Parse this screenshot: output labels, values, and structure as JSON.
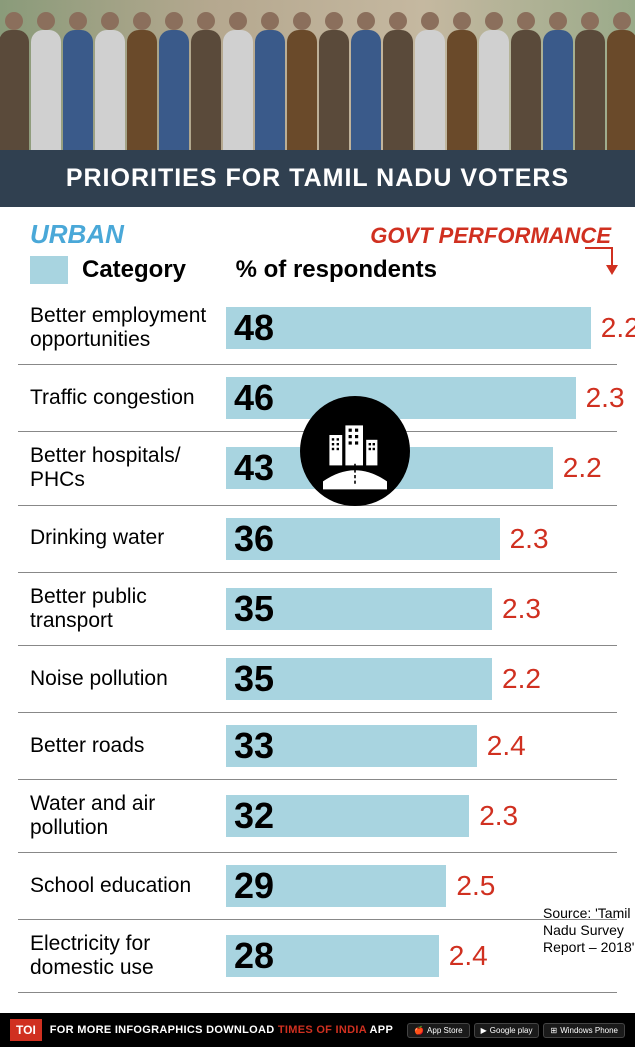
{
  "title": "PRIORITIES FOR TAMIL NADU VOTERS",
  "urban_label": "URBAN",
  "govt_label": "GOVT PERFORMANCE",
  "category_header": "Category",
  "pct_header": "% of respondents",
  "source": "Source: 'Tamil Nadu Survey Report – 2018'",
  "footer": {
    "logo": "TOI",
    "pre": "FOR MORE  INFOGRAPHICS DOWNLOAD ",
    "brand": "TIMES OF INDIA",
    "post": "  APP",
    "stores": [
      "App Store",
      "Google play",
      "Windows Phone"
    ]
  },
  "chart": {
    "type": "bar",
    "bar_color": "#a8d4e0",
    "value_color": "#000000",
    "perf_color": "#d03020",
    "max_pct": 50,
    "rows": [
      {
        "category": "Better employment opportunities",
        "pct": 48,
        "perf": "2.2"
      },
      {
        "category": "Traffic congestion",
        "pct": 46,
        "perf": "2.3"
      },
      {
        "category": "Better hospitals/ PHCs",
        "pct": 43,
        "perf": "2.2"
      },
      {
        "category": "Drinking water",
        "pct": 36,
        "perf": "2.3"
      },
      {
        "category": "Better public transport",
        "pct": 35,
        "perf": "2.3"
      },
      {
        "category": "Noise pollution",
        "pct": 35,
        "perf": "2.2"
      },
      {
        "category": "Better roads",
        "pct": 33,
        "perf": "2.4"
      },
      {
        "category": "Water and air pollution",
        "pct": 32,
        "perf": "2.3"
      },
      {
        "category": "School education",
        "pct": 29,
        "perf": "2.5"
      },
      {
        "category": "Electricity for domestic use",
        "pct": 28,
        "perf": "2.4"
      }
    ]
  }
}
